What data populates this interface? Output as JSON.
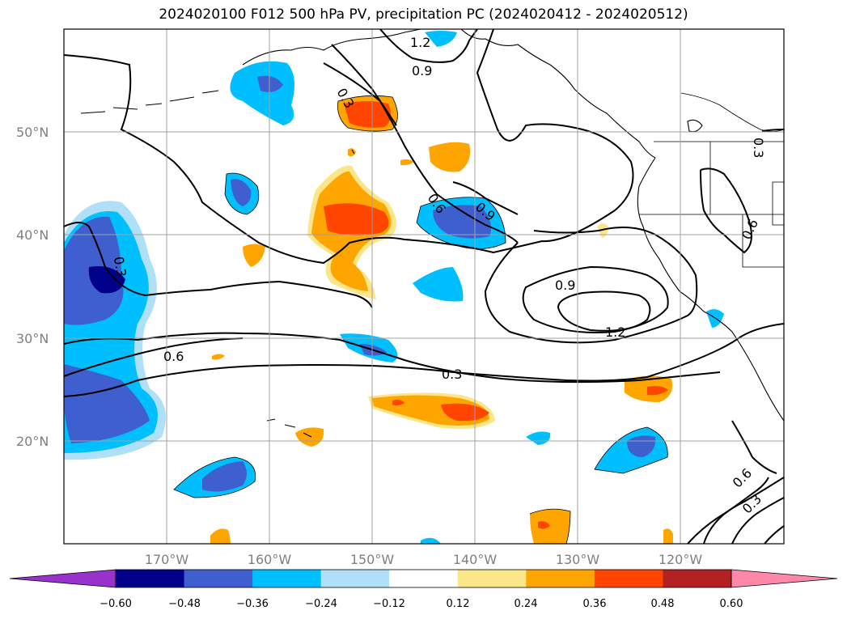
{
  "title": "2024020100 F012 500 hPa PV, precipitation PC (2024020412 - 2024020512)",
  "map": {
    "lat_ticks": [
      "50°N",
      "40°N",
      "30°N",
      "20°N"
    ],
    "lon_ticks": [
      "170°W",
      "160°W",
      "150°W",
      "140°W",
      "130°W",
      "120°W"
    ],
    "contour_labels": [
      "1.2",
      "0.9",
      "0.3",
      "0.6",
      "0.9",
      "0.3",
      "0.6",
      "0.9",
      "1.2",
      "0.6",
      "0.3",
      "0.3",
      "0.6",
      "0.3",
      "0.6",
      "0.3"
    ]
  },
  "colorbar": {
    "ticks": [
      "−0.60",
      "−0.48",
      "−0.36",
      "−0.24",
      "−0.12",
      "0.12",
      "0.24",
      "0.36",
      "0.48",
      "0.60"
    ],
    "colors": [
      "#9932cc",
      "#00008b",
      "#3f5fcf",
      "#00bfff",
      "#b0e0f8",
      "#ffffff",
      "#fce68a",
      "#ffa500",
      "#ff4500",
      "#b22222",
      "#ff88aa"
    ]
  }
}
